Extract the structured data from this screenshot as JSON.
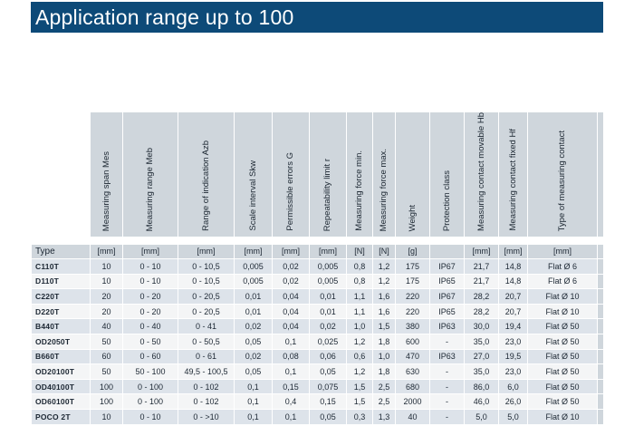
{
  "title": "Application range up to 100",
  "columns": [
    {
      "header": "Type",
      "unit": ""
    },
    {
      "header": "Measuring span Mes",
      "unit": "[mm]"
    },
    {
      "header": "Measuring range Meb",
      "unit": "[mm]"
    },
    {
      "header": "Range of indication\nAzb",
      "unit": "[mm]"
    },
    {
      "header": "Scale interval Skw",
      "unit": "[mm]"
    },
    {
      "header": "Permissible errors G",
      "unit": "[mm]"
    },
    {
      "header": "Repeatability limit r",
      "unit": "[mm]"
    },
    {
      "header": "Measuring force min.",
      "unit": "[N]"
    },
    {
      "header": "Measuring force max.",
      "unit": "[N]"
    },
    {
      "header": "Weight",
      "unit": "[g]"
    },
    {
      "header": "Protection class",
      "unit": ""
    },
    {
      "header": "Measuring contact\nmovable Hb",
      "unit": "[mm]"
    },
    {
      "header": "Measuring contact\nfixed Hf",
      "unit": "[mm]"
    },
    {
      "header": "Type of measuring\ncontact",
      "unit": "[mm]"
    }
  ],
  "rows": [
    [
      "C110T",
      "10",
      "0 - 10",
      "0 - 10,5",
      "0,005",
      "0,02",
      "0,005",
      "0,8",
      "1,2",
      "175",
      "IP67",
      "21,7",
      "14,8",
      "Flat Ø 6"
    ],
    [
      "D110T",
      "10",
      "0 - 10",
      "0 - 10,5",
      "0,005",
      "0,02",
      "0,005",
      "0,8",
      "1,2",
      "175",
      "IP65",
      "21,7",
      "14,8",
      "Flat Ø 6"
    ],
    [
      "C220T",
      "20",
      "0 - 20",
      "0 - 20,5",
      "0,01",
      "0,04",
      "0,01",
      "1,1",
      "1,6",
      "220",
      "IP67",
      "28,2",
      "20,7",
      "Flat Ø 10"
    ],
    [
      "D220T",
      "20",
      "0 - 20",
      "0 - 20,5",
      "0,01",
      "0,04",
      "0,01",
      "1,1",
      "1,6",
      "220",
      "IP65",
      "28,2",
      "20,7",
      "Flat Ø 10"
    ],
    [
      "B440T",
      "40",
      "0 - 40",
      "0 - 41",
      "0,02",
      "0,04",
      "0,02",
      "1,0",
      "1,5",
      "380",
      "IP63",
      "30,0",
      "19,4",
      "Flat Ø 50"
    ],
    [
      "OD2050T",
      "50",
      "0 - 50",
      "0 - 50,5",
      "0,05",
      "0,1",
      "0,025",
      "1,2",
      "1,8",
      "600",
      "-",
      "35,0",
      "23,0",
      "Flat Ø 50"
    ],
    [
      "B660T",
      "60",
      "0 - 60",
      "0 - 61",
      "0,02",
      "0,08",
      "0,06",
      "0,6",
      "1,0",
      "470",
      "IP63",
      "27,0",
      "19,5",
      "Flat Ø 50"
    ],
    [
      "OD20100T",
      "50",
      "50 - 100",
      "49,5 - 100,5",
      "0,05",
      "0,1",
      "0,05",
      "1,2",
      "1,8",
      "630",
      "-",
      "35,0",
      "23,0",
      "Flat Ø 50"
    ],
    [
      "OD40100T",
      "100",
      "0 - 100",
      "0 - 102",
      "0,1",
      "0,15",
      "0,075",
      "1,5",
      "2,5",
      "680",
      "-",
      "86,0",
      "6,0",
      "Flat Ø 50"
    ],
    [
      "OD60100T",
      "100",
      "0 - 100",
      "0 - 102",
      "0,1",
      "0,4",
      "0,15",
      "1,5",
      "2,5",
      "2000",
      "-",
      "46,0",
      "26,0",
      "Flat Ø 50"
    ],
    [
      "POCO 2T",
      "10",
      "0 - 10",
      "0 - >10",
      "0,1",
      "0,1",
      "0,05",
      "0,3",
      "1,3",
      "40",
      "-",
      "5,0",
      "5,0",
      "Flat Ø 10"
    ]
  ],
  "colors": {
    "title_bar": "#0d4a78",
    "header_fill": "#cfd6dc",
    "row_shaded": "#dde3ea",
    "row_plain": "#f4f5f6"
  }
}
